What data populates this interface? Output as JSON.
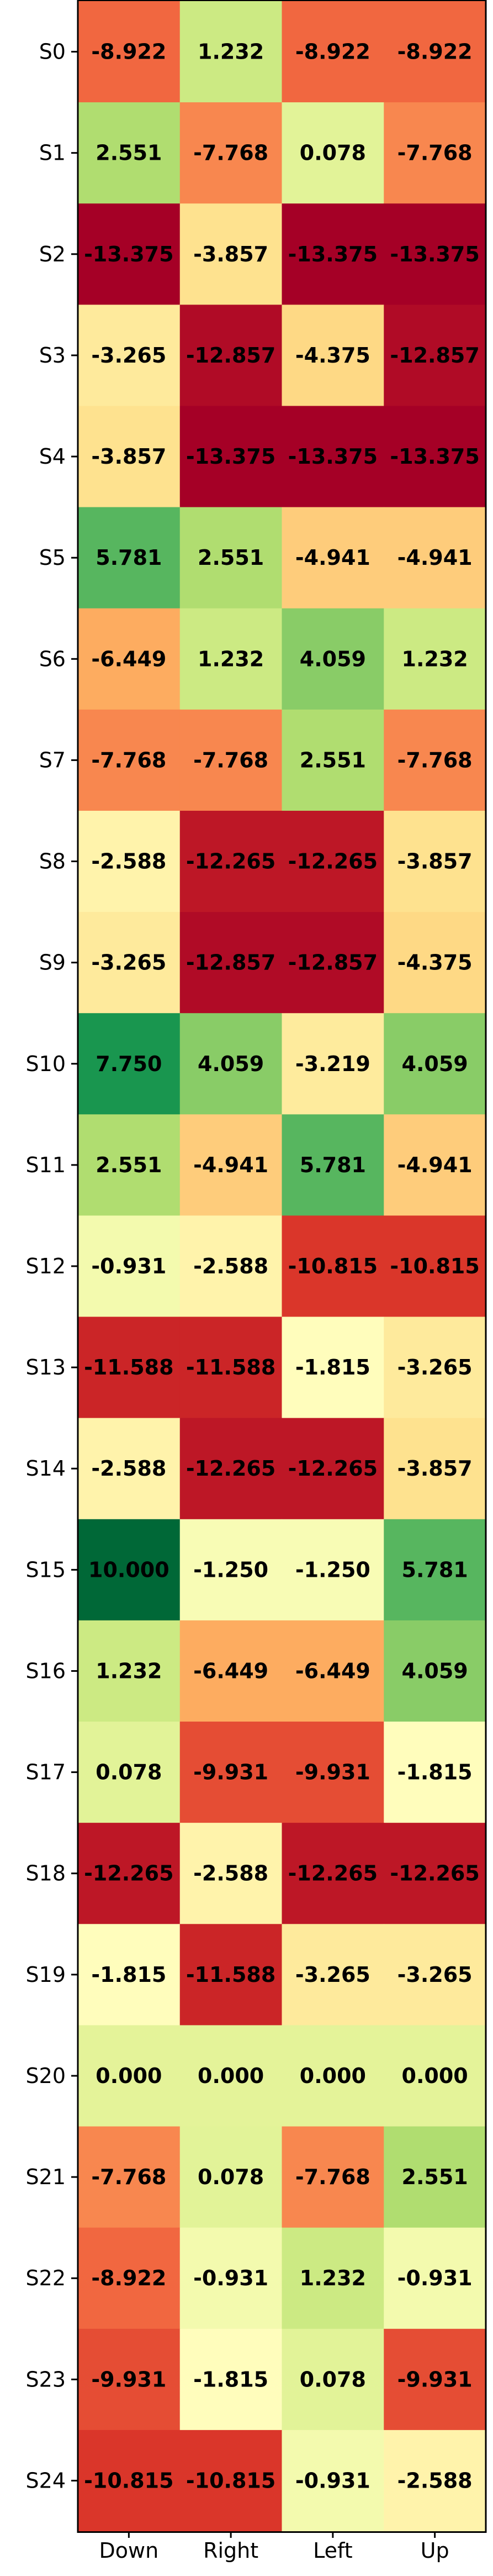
{
  "chart_data": {
    "type": "heatmap",
    "title": "",
    "xlabel": "",
    "ylabel": "",
    "colormap": "RdYlGn",
    "value_range": [
      -13.375,
      10.0
    ],
    "x_categories": [
      "Down",
      "Right",
      "Left",
      "Up"
    ],
    "y_categories": [
      "S0",
      "S1",
      "S2",
      "S3",
      "S4",
      "S5",
      "S6",
      "S7",
      "S8",
      "S9",
      "S10",
      "S11",
      "S12",
      "S13",
      "S14",
      "S15",
      "S16",
      "S17",
      "S18",
      "S19",
      "S20",
      "S21",
      "S22",
      "S23",
      "S24"
    ],
    "values": [
      [
        -8.922,
        1.232,
        -8.922,
        -8.922
      ],
      [
        2.551,
        -7.768,
        0.078,
        -7.768
      ],
      [
        -13.375,
        -3.857,
        -13.375,
        -13.375
      ],
      [
        -3.265,
        -12.857,
        -4.375,
        -12.857
      ],
      [
        -3.857,
        -13.375,
        -13.375,
        -13.375
      ],
      [
        5.781,
        2.551,
        -4.941,
        -4.941
      ],
      [
        -6.449,
        1.232,
        4.059,
        1.232
      ],
      [
        -7.768,
        -7.768,
        2.551,
        -7.768
      ],
      [
        -2.588,
        -12.265,
        -12.265,
        -3.857
      ],
      [
        -3.265,
        -12.857,
        -12.857,
        -4.375
      ],
      [
        7.75,
        4.059,
        -3.219,
        4.059
      ],
      [
        2.551,
        -4.941,
        5.781,
        -4.941
      ],
      [
        -0.931,
        -2.588,
        -10.815,
        -10.815
      ],
      [
        -11.588,
        -11.588,
        -1.815,
        -3.265
      ],
      [
        -2.588,
        -12.265,
        -12.265,
        -3.857
      ],
      [
        10.0,
        -1.25,
        -1.25,
        5.781
      ],
      [
        1.232,
        -6.449,
        -6.449,
        4.059
      ],
      [
        0.078,
        -9.931,
        -9.931,
        -1.815
      ],
      [
        -12.265,
        -2.588,
        -12.265,
        -12.265
      ],
      [
        -1.815,
        -11.588,
        -3.265,
        -3.265
      ],
      [
        0.0,
        0.0,
        0.0,
        0.0
      ],
      [
        -7.768,
        0.078,
        -7.768,
        2.551
      ],
      [
        -8.922,
        -0.931,
        1.232,
        -0.931
      ],
      [
        -9.931,
        -1.815,
        0.078,
        -9.931
      ],
      [
        -10.815,
        -10.815,
        -0.931,
        -2.588
      ]
    ]
  }
}
